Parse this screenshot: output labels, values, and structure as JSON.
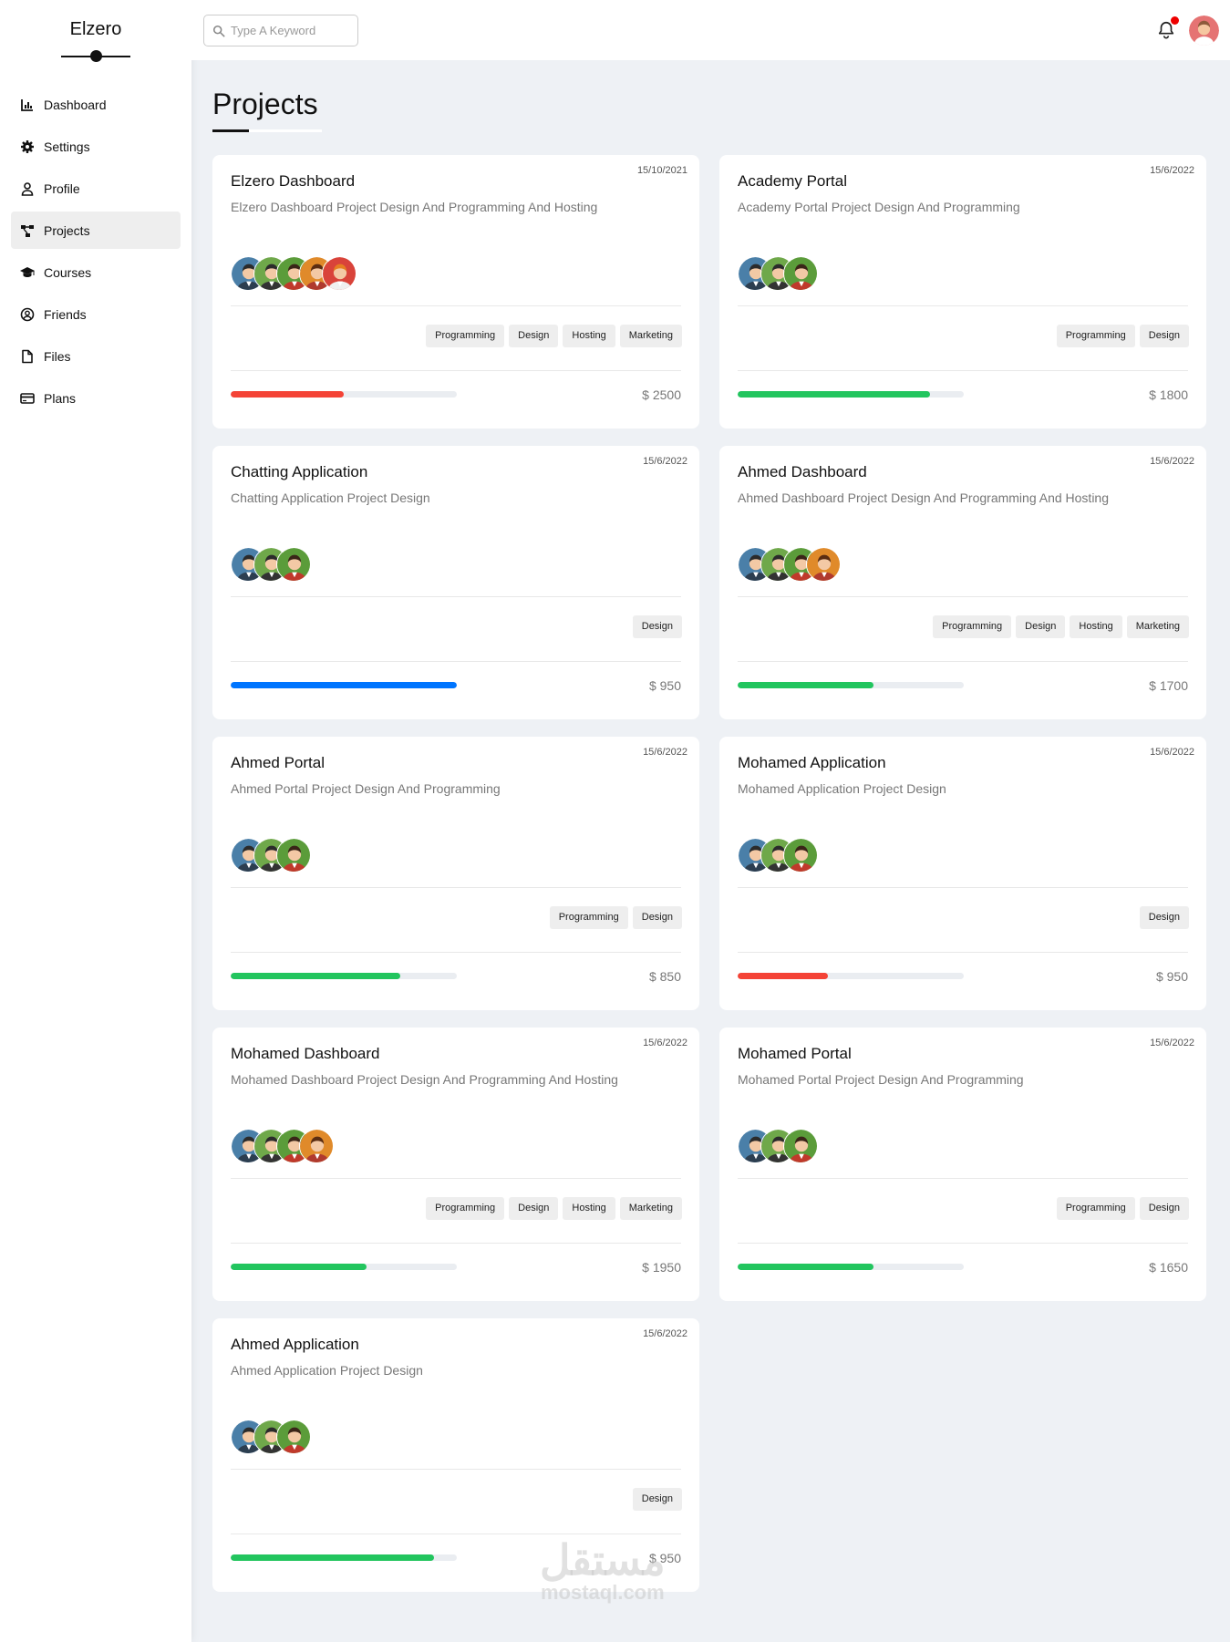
{
  "brand": "Elzero",
  "nav": [
    {
      "label": "Dashboard",
      "icon": "chart-icon",
      "active": false
    },
    {
      "label": "Settings",
      "icon": "gear-icon",
      "active": false
    },
    {
      "label": "Profile",
      "icon": "user-icon",
      "active": false
    },
    {
      "label": "Projects",
      "icon": "project-diagram-icon",
      "active": true
    },
    {
      "label": "Courses",
      "icon": "graduation-cap-icon",
      "active": false
    },
    {
      "label": "Friends",
      "icon": "user-circle-icon",
      "active": false
    },
    {
      "label": "Files",
      "icon": "file-icon",
      "active": false
    },
    {
      "label": "Plans",
      "icon": "credit-card-icon",
      "active": false
    }
  ],
  "search": {
    "placeholder": "Type A Keyword",
    "value": ""
  },
  "page_title": "Projects",
  "colors": {
    "red": "#f44336",
    "green": "#22c55e",
    "blue": "#0075ff"
  },
  "projects": [
    {
      "title": "Elzero Dashboard",
      "date": "15/10/2021",
      "desc": "Elzero Dashboard Project Design And Programming And Hosting",
      "avatars": 5,
      "tags": [
        "Programming",
        "Design",
        "Hosting",
        "Marketing"
      ],
      "progress": 0.5,
      "color": "#f44336",
      "price": "$ 2500"
    },
    {
      "title": "Academy Portal",
      "date": "15/6/2022",
      "desc": "Academy Portal Project Design And Programming",
      "avatars": 3,
      "tags": [
        "Programming",
        "Design"
      ],
      "progress": 0.85,
      "color": "#22c55e",
      "price": "$ 1800"
    },
    {
      "title": "Chatting Application",
      "date": "15/6/2022",
      "desc": "Chatting Application Project Design",
      "avatars": 3,
      "tags": [
        "Design"
      ],
      "progress": 1.0,
      "color": "#0075ff",
      "price": "$ 950"
    },
    {
      "title": "Ahmed Dashboard",
      "date": "15/6/2022",
      "desc": "Ahmed Dashboard Project Design And Programming And Hosting",
      "avatars": 4,
      "tags": [
        "Programming",
        "Design",
        "Hosting",
        "Marketing"
      ],
      "progress": 0.6,
      "color": "#22c55e",
      "price": "$ 1700"
    },
    {
      "title": "Ahmed Portal",
      "date": "15/6/2022",
      "desc": "Ahmed Portal Project Design And Programming",
      "avatars": 3,
      "tags": [
        "Programming",
        "Design"
      ],
      "progress": 0.75,
      "color": "#22c55e",
      "price": "$ 850"
    },
    {
      "title": "Mohamed Application",
      "date": "15/6/2022",
      "desc": "Mohamed Application Project Design",
      "avatars": 3,
      "tags": [
        "Design"
      ],
      "progress": 0.4,
      "color": "#f44336",
      "price": "$ 950"
    },
    {
      "title": "Mohamed Dashboard",
      "date": "15/6/2022",
      "desc": "Mohamed Dashboard Project Design And Programming And Hosting",
      "avatars": 4,
      "tags": [
        "Programming",
        "Design",
        "Hosting",
        "Marketing"
      ],
      "progress": 0.6,
      "color": "#22c55e",
      "price": "$ 1950"
    },
    {
      "title": "Mohamed Portal",
      "date": "15/6/2022",
      "desc": "Mohamed Portal Project Design And Programming",
      "avatars": 3,
      "tags": [
        "Programming",
        "Design"
      ],
      "progress": 0.6,
      "color": "#22c55e",
      "price": "$ 1650"
    },
    {
      "title": "Ahmed Application",
      "date": "15/6/2022",
      "desc": "Ahmed Application Project Design",
      "avatars": 3,
      "tags": [
        "Design"
      ],
      "progress": 0.9,
      "color": "#22c55e",
      "price": "$ 950"
    }
  ],
  "watermark": {
    "arabic": "مستقل",
    "latin": "mostaql.com"
  }
}
